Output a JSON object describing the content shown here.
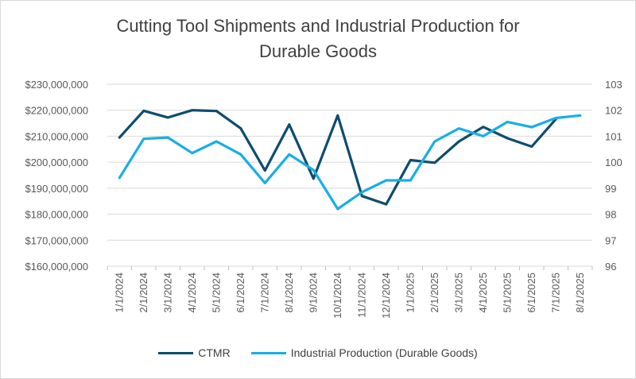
{
  "chart_data": {
    "type": "line",
    "title_line1": "Cutting Tool Shipments and Industrial Production for",
    "title_line2": "Durable Goods",
    "categories": [
      "1/1/2024",
      "2/1/2024",
      "3/1/2024",
      "4/1/2024",
      "5/1/2024",
      "6/1/2024",
      "7/1/2024",
      "8/1/2024",
      "9/1/2024",
      "10/1/2024",
      "11/1/2024",
      "12/1/2024",
      "1/1/2025",
      "2/1/2025",
      "3/1/2025",
      "4/1/2025",
      "5/1/2025",
      "6/1/2025",
      "7/1/2025",
      "8/1/2025"
    ],
    "left_axis": {
      "min": 160000000,
      "max": 230000000,
      "step": 10000000,
      "tick_labels": [
        "$160,000,000",
        "$170,000,000",
        "$180,000,000",
        "$190,000,000",
        "$200,000,000",
        "$210,000,000",
        "$220,000,000",
        "$230,000,000"
      ]
    },
    "right_axis": {
      "min": 96,
      "max": 103,
      "step": 1,
      "tick_labels": [
        "96",
        "97",
        "98",
        "99",
        "100",
        "101",
        "102",
        "103"
      ]
    },
    "series": [
      {
        "name": "CTMR",
        "axis": "left",
        "color": "#0e4d6e",
        "values": [
          209500000,
          219800000,
          217200000,
          220000000,
          219700000,
          213000000,
          196800000,
          214500000,
          193700000,
          218000000,
          187000000,
          183800000,
          200800000,
          199800000,
          208000000,
          213600000,
          209200000,
          206000000,
          216600000,
          null
        ]
      },
      {
        "name": "Industrial Production (Durable Goods)",
        "axis": "right",
        "color": "#18aee6",
        "values": [
          99.4,
          100.9,
          100.95,
          100.35,
          100.8,
          100.3,
          99.2,
          100.3,
          99.7,
          98.2,
          98.85,
          99.3,
          99.3,
          100.8,
          101.3,
          101.0,
          101.55,
          101.35,
          101.7,
          101.8
        ]
      }
    ],
    "grid": "horizontal"
  }
}
